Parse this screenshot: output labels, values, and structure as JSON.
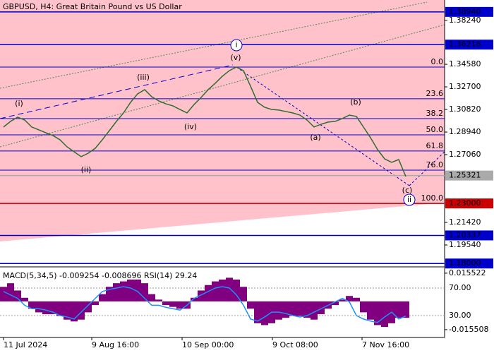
{
  "chart_data": [
    {
      "type": "line",
      "title": "GBPUSD, H4:  Great Britain Pound vs US Dollar",
      "color": "#2f6b2f",
      "x": [
        0,
        1,
        2,
        3,
        4,
        5,
        6,
        7,
        8,
        9,
        10,
        11,
        12,
        13,
        14,
        15,
        16,
        17,
        18,
        19,
        20,
        21,
        22,
        23,
        24,
        25,
        26,
        27,
        28,
        29,
        30,
        31,
        32,
        33,
        34,
        35,
        36,
        37,
        38,
        39,
        40,
        41,
        42,
        43,
        44,
        45,
        46,
        47,
        48,
        49,
        50,
        51,
        52,
        53,
        54,
        55,
        56,
        57
      ],
      "values": [
        1.2936,
        1.2983,
        1.3018,
        1.2994,
        1.2936,
        1.2912,
        1.2888,
        1.2865,
        1.283,
        1.2771,
        1.273,
        1.2689,
        1.2718,
        1.2759,
        1.283,
        1.2906,
        1.2983,
        1.3053,
        1.3141,
        1.3212,
        1.3247,
        1.3188,
        1.3153,
        1.3129,
        1.3112,
        1.3082,
        1.3053,
        1.3123,
        1.3182,
        1.3247,
        1.33,
        1.3358,
        1.3405,
        1.3435,
        1.3405,
        1.3276,
        1.3141,
        1.31,
        1.3082,
        1.3077,
        1.3065,
        1.3053,
        1.3035,
        1.2994,
        1.2936,
        1.2959,
        1.2977,
        1.2983,
        1.3006,
        1.3035,
        1.3024,
        1.2936,
        1.2847,
        1.2748,
        1.2671,
        1.2642,
        1.2665,
        1.2524
      ],
      "xlim": [
        0,
        62.5
      ],
      "xticks": [
        {
          "value": 0,
          "label": "11 Jul 2024"
        },
        {
          "value": 12.5,
          "label": "9 Aug 16:00"
        },
        {
          "value": 25.3,
          "label": "10 Sep 00:00"
        },
        {
          "value": 38.1,
          "label": "9 Oct 08:00"
        },
        {
          "value": 50.8,
          "label": "7 Nov 16:00"
        }
      ],
      "ylim": [
        1.1772,
        1.3993
      ],
      "yticks": [
        {
          "value": 1.3824,
          "label": "1.38240"
        },
        {
          "value": 1.3458,
          "label": "1.34580"
        },
        {
          "value": 1.327,
          "label": "1.32700"
        },
        {
          "value": 1.3082,
          "label": "1.30820"
        },
        {
          "value": 1.2894,
          "label": "1.28940"
        },
        {
          "value": 1.2706,
          "label": "1.27060"
        },
        {
          "value": 1.2142,
          "label": "1.21420"
        },
        {
          "value": 1.1954,
          "label": "1.19540"
        }
      ],
      "levels": [
        {
          "value": 1.3894,
          "label": "1.38940",
          "color": "#0000cc"
        },
        {
          "value": 1.36216,
          "label": "1.36216",
          "color": "#0000cc"
        },
        {
          "value": 1.25321,
          "label": "1.25321",
          "color": "#aaaaaa"
        },
        {
          "value": 1.23,
          "label": "1.23000",
          "color": "#cc0000"
        },
        {
          "value": 1.20337,
          "label": "1.20337",
          "color": "#0000cc"
        },
        {
          "value": 1.18,
          "label": "1.18000",
          "color": "#0000cc"
        }
      ],
      "fib_levels": [
        {
          "value": 1.3435,
          "label": "0.0"
        },
        {
          "value": 1.3171,
          "label": "23.6"
        },
        {
          "value": 1.3006,
          "label": "38.2"
        },
        {
          "value": 1.2871,
          "label": "50.0"
        },
        {
          "value": 1.2736,
          "label": "61.8"
        },
        {
          "value": 1.2577,
          "label": "76.0"
        },
        {
          "value": 1.23,
          "label": "100.0"
        }
      ],
      "annotations": [
        "(i)",
        "(ii)",
        "(iii)",
        "(iv)",
        "(v)",
        "(a)",
        "(b)",
        "(c)",
        "i",
        "ii"
      ]
    },
    {
      "type": "bar",
      "title": "MACD(5,34,5) -0.009254 -0.008696 RSI(14) 29.24",
      "x": [
        0,
        1,
        2,
        3,
        4,
        5,
        6,
        7,
        8,
        9,
        10,
        11,
        12,
        13,
        14,
        15,
        16,
        17,
        18,
        19,
        20,
        21,
        22,
        23,
        24,
        25,
        26,
        27,
        28,
        29,
        30,
        31,
        32,
        33,
        34,
        35,
        36,
        37,
        38,
        39,
        40,
        41,
        42,
        43,
        44,
        45,
        46,
        47,
        48,
        49,
        50,
        51,
        52,
        53,
        54,
        55,
        56,
        57
      ],
      "series": [
        {
          "name": "MACD",
          "color": "#800080",
          "values": [
            0.008,
            0.01,
            0.006,
            0.002,
            -0.004,
            -0.006,
            -0.007,
            -0.007,
            -0.008,
            -0.01,
            -0.011,
            -0.01,
            -0.006,
            -0.002,
            0.004,
            0.008,
            0.01,
            0.011,
            0.012,
            0.012,
            0.01,
            0.004,
            0.001,
            -0.002,
            -0.003,
            -0.004,
            -0.004,
            0.002,
            0.006,
            0.009,
            0.011,
            0.012,
            0.013,
            0.012,
            0.008,
            -0.004,
            -0.012,
            -0.013,
            -0.012,
            -0.01,
            -0.009,
            -0.008,
            -0.008,
            -0.009,
            -0.01,
            -0.007,
            -0.004,
            -0.002,
            0.001,
            0.003,
            0.002,
            -0.006,
            -0.01,
            -0.013,
            -0.014,
            -0.012,
            -0.009,
            -0.009
          ]
        },
        {
          "name": "RSI(14)",
          "color": "#1e90ff",
          "axis": "y2",
          "values": [
            65,
            60,
            55,
            45,
            40,
            40,
            38,
            35,
            30,
            28,
            25,
            35,
            45,
            55,
            65,
            68,
            70,
            72,
            70,
            65,
            55,
            45,
            45,
            42,
            40,
            38,
            45,
            55,
            60,
            65,
            70,
            72,
            70,
            60,
            45,
            25,
            22,
            28,
            35,
            35,
            33,
            30,
            28,
            30,
            35,
            40,
            45,
            50,
            55,
            50,
            30,
            25,
            22,
            20,
            28,
            35,
            25,
            29.24
          ]
        }
      ],
      "ylim": [
        -0.0198,
        0.0182
      ],
      "yticks": [
        0.015522,
        -0.015508
      ],
      "y2lim": [
        -1.8,
        98.7
      ],
      "y2ticks": [
        {
          "value": 70,
          "label": "70.00"
        },
        {
          "value": 30,
          "label": "30.00"
        }
      ]
    }
  ]
}
